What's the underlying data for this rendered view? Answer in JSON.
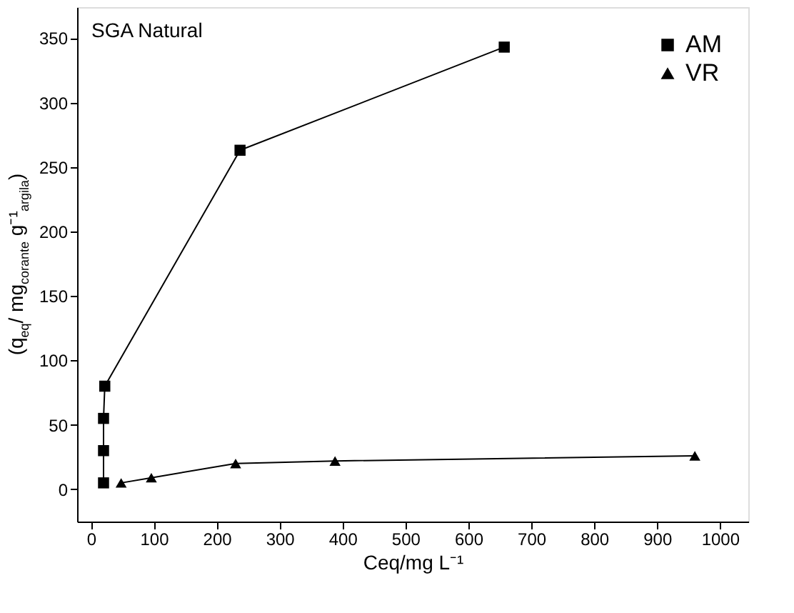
{
  "chart_data": {
    "type": "line",
    "xlabel": "Ceq/mg L⁻¹",
    "ylabel": "(q$_{eq}$/ mg$_{corante}$ g⁻¹$_{argila}$)",
    "annotations": [
      "SGA Natural"
    ],
    "series": [
      {
        "name": "AM",
        "color": "#000000",
        "marker": "square",
        "x": [
          20,
          20,
          20,
          22,
          237,
          657
        ],
        "values": [
          5,
          30,
          55,
          80,
          263,
          343
        ]
      },
      {
        "name": "VR",
        "color": "#000000",
        "marker": "triangle",
        "x": [
          48,
          96,
          230,
          388,
          960
        ],
        "values": [
          5,
          9,
          20,
          22,
          26
        ]
      }
    ],
    "xlim": [
      -22,
      1045
    ],
    "xticks": [
      0,
      100,
      200,
      300,
      400,
      500,
      600,
      700,
      800,
      900,
      1000
    ],
    "ylim": [
      -25,
      374
    ],
    "yticks": [
      0,
      50,
      100,
      150,
      200,
      250,
      300,
      350
    ],
    "grid": false,
    "legend": "top right",
    "line_style": "solid"
  }
}
